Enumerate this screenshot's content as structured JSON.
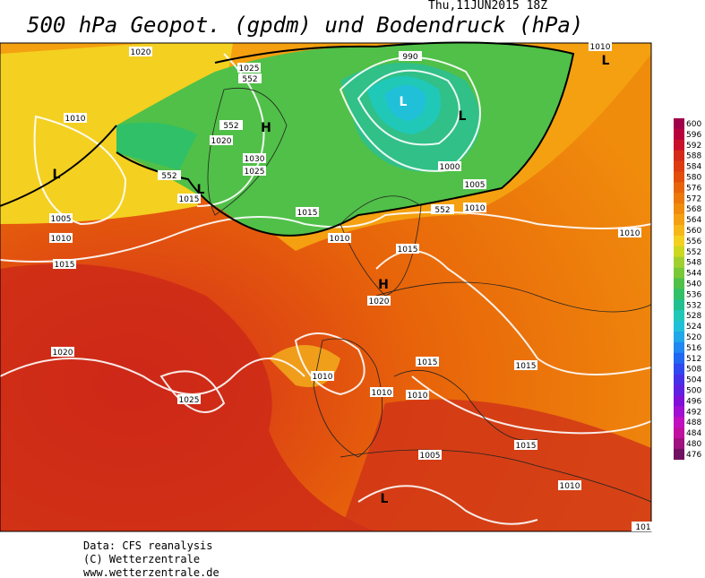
{
  "header": {
    "title": "500 hPa Geopot. (gpdm) und Bodendruck (hPa)",
    "datetime": "Thu,11JUN2015 18Z"
  },
  "map": {
    "contour_labels": [
      "1020",
      "990",
      "1025",
      "552",
      "552",
      "1020",
      "1010",
      "1030",
      "1025",
      "1000",
      "552",
      "1005",
      "1015",
      "1015",
      "552",
      "1010",
      "1005",
      "1010",
      "1010",
      "1015",
      "1010",
      "1015",
      "1020",
      "1020",
      "1010",
      "1015",
      "1015",
      "1010",
      "1010",
      "1025",
      "1015",
      "1005",
      "1010",
      "1010",
      "101"
    ],
    "pressure_centers": [
      "L",
      "L",
      "H",
      "L",
      "L",
      "H",
      "L",
      "L"
    ]
  },
  "colorbar": {
    "ticks": [
      600,
      596,
      592,
      588,
      584,
      580,
      576,
      572,
      568,
      564,
      560,
      556,
      552,
      548,
      544,
      540,
      536,
      532,
      528,
      524,
      520,
      516,
      512,
      508,
      504,
      500,
      496,
      492,
      488,
      484,
      480,
      476
    ],
    "colors": [
      "#a0004a",
      "#b8003c",
      "#c8102a",
      "#d42a1a",
      "#dc3c10",
      "#e24e0c",
      "#e8640a",
      "#ec780a",
      "#f08c0c",
      "#f4a010",
      "#f6b818",
      "#f4d020",
      "#ccd820",
      "#a0d030",
      "#78c838",
      "#50c048",
      "#30c068",
      "#20c090",
      "#20c8b8",
      "#20c0d8",
      "#20a8e8",
      "#2088f0",
      "#2068f0",
      "#3048f0",
      "#4830e8",
      "#6020e0",
      "#8010d8",
      "#a010d0",
      "#c010c0",
      "#c010a0",
      "#a01080",
      "#701060"
    ]
  },
  "footer": {
    "lines": [
      "Data: CFS reanalysis",
      "(C) Wetterzentrale",
      "www.wetterzentrale.de"
    ]
  }
}
